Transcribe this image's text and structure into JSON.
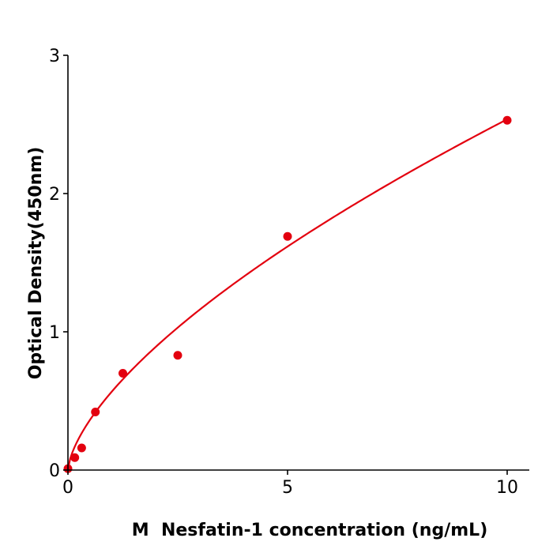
{
  "chart_data": {
    "type": "scatter",
    "title": "",
    "xlabel": "M  Nesfatin-1 concentration (ng/mL)",
    "ylabel": "Optical Density(450nm)",
    "xlim": [
      0,
      10.5
    ],
    "ylim": [
      0,
      3
    ],
    "xticks": [
      "0",
      "5",
      "10"
    ],
    "yticks": [
      "0",
      "1",
      "2",
      "3"
    ],
    "grid": false,
    "points": {
      "x": [
        0,
        0.156,
        0.3125,
        0.625,
        1.25,
        2.5,
        5,
        10
      ],
      "y": [
        0.01,
        0.09,
        0.16,
        0.42,
        0.7,
        0.83,
        1.69,
        2.53
      ]
    },
    "fit_curve": {
      "model": "power",
      "a": 0.568,
      "b": 0.65
    },
    "color": "#e3000f"
  }
}
